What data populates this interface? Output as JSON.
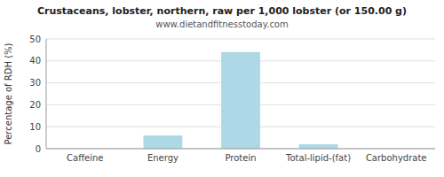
{
  "chart_data": {
    "type": "bar",
    "title": "Crustaceans, lobster, northern, raw per 1,000 lobster (or 150.00 g)",
    "subtitle": "www.dietandfitnesstoday.com",
    "categories": [
      "Caffeine",
      "Energy",
      "Protein",
      "Total-lipid-(fat)",
      "Carbohydrate"
    ],
    "values": [
      0,
      6,
      44,
      2,
      0
    ],
    "color": "#add8e6",
    "ylabel": "Percentage of RDH (%)",
    "ylim": [
      0,
      50
    ],
    "yticks": [
      0,
      10,
      20,
      30,
      40,
      50
    ],
    "grid": true
  }
}
